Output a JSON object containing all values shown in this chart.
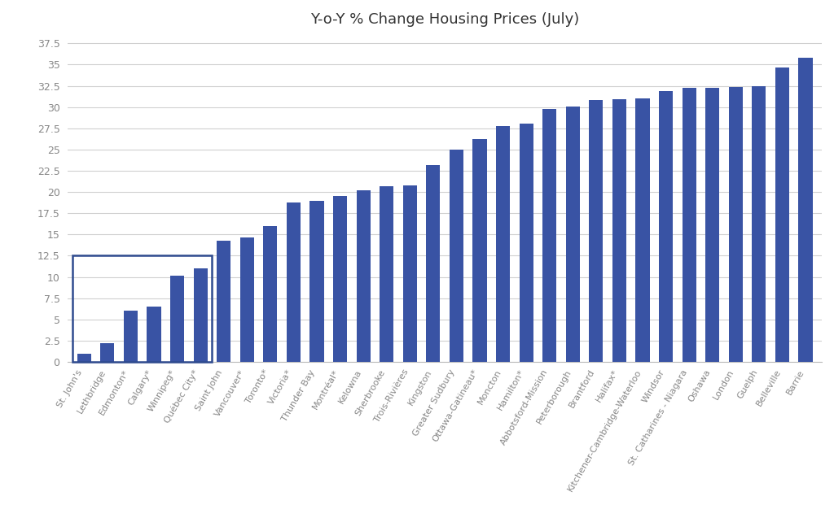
{
  "title": "Y-o-Y % Change Housing Prices (July)",
  "categories": [
    "St. John's",
    "Lethbridge",
    "Edmonton*",
    "Calgary*",
    "Winnipeg*",
    "Québec City*",
    "Saint John",
    "Vancouver*",
    "Toronto*",
    "Victoria*",
    "Thunder Bay",
    "Montréal*",
    "Kelowna",
    "Sherbrooke",
    "Trois-Rivières",
    "Kingston",
    "Greater Sudbury",
    "Ottawa-Gatineau*",
    "Moncton",
    "Hamilton*",
    "Abbotsford-Mission",
    "Peterborough",
    "Brantford",
    "Halifax*",
    "Kitchener-Cambridge-Waterloo",
    "Windsor",
    "St. Catharines - Niagara",
    "Oshawa",
    "London",
    "Guelph",
    "Belleville",
    "Barrie"
  ],
  "values": [
    1.0,
    2.2,
    6.0,
    6.5,
    10.2,
    11.0,
    14.3,
    14.7,
    16.0,
    18.8,
    19.0,
    19.5,
    20.2,
    20.7,
    20.8,
    23.2,
    25.0,
    26.2,
    27.8,
    28.1,
    29.8,
    30.1,
    30.8,
    30.9,
    31.0,
    31.9,
    32.3,
    32.3,
    32.4,
    32.5,
    34.7,
    35.8
  ],
  "bar_color": "#3953a4",
  "box_indices": [
    0,
    1,
    2,
    3,
    4,
    5
  ],
  "box_color": "#2e4a8e",
  "ylim": [
    0,
    38.5
  ],
  "yticks": [
    0,
    2.5,
    5,
    7.5,
    10,
    12.5,
    15,
    17.5,
    20,
    22.5,
    25,
    27.5,
    30,
    32.5,
    35,
    37.5
  ],
  "background_color": "#ffffff",
  "grid_color": "#d0d0d0",
  "title_fontsize": 13,
  "tick_label_fontsize": 8,
  "ytick_fontsize": 9
}
